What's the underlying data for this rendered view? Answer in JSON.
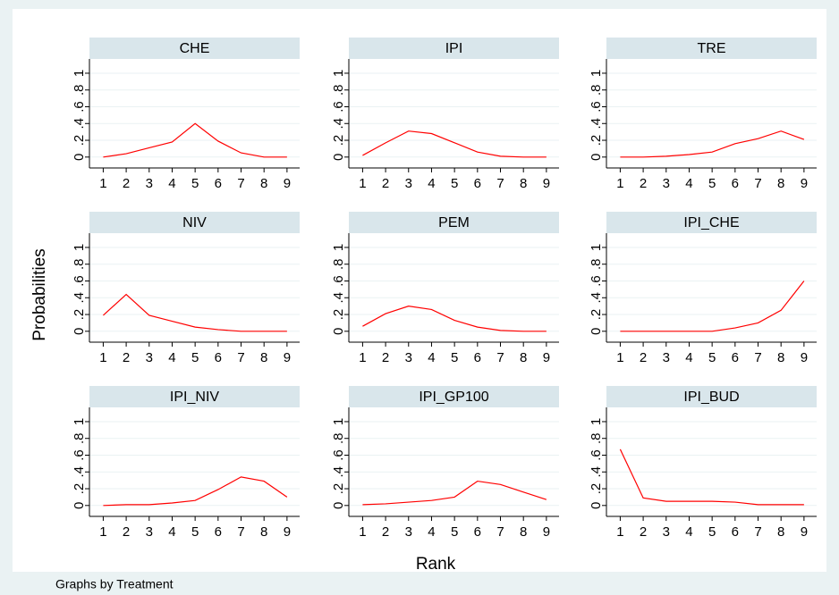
{
  "y_label": "Probabilities",
  "x_label": "Rank",
  "note": "Graphs by Treatment",
  "chart_data": [
    {
      "type": "line",
      "title": "CHE",
      "x": [
        1,
        2,
        3,
        4,
        5,
        6,
        7,
        8,
        9
      ],
      "values": [
        0,
        0.04,
        0.11,
        0.18,
        0.4,
        0.19,
        0.05,
        0,
        0
      ],
      "color": "#ff0000",
      "xlim": [
        0.4,
        9.55
      ],
      "ylim": [
        -0.13,
        1.17
      ],
      "xticks": [
        1,
        2,
        3,
        4,
        5,
        6,
        7,
        8,
        9
      ],
      "yticks": [
        0,
        {
          "value": 0.2,
          "label": ".2"
        },
        {
          "value": 0.4,
          "label": ".4"
        },
        {
          "value": 0.6,
          "label": ".6"
        },
        {
          "value": 0.8,
          "label": ".8"
        },
        1
      ],
      "grid": true
    },
    {
      "type": "line",
      "title": "IPI",
      "x": [
        1,
        2,
        3,
        4,
        5,
        6,
        7,
        8,
        9
      ],
      "values": [
        0.02,
        0.17,
        0.31,
        0.28,
        0.17,
        0.06,
        0.01,
        0,
        0
      ],
      "color": "#ff0000",
      "xlim": [
        0.4,
        9.55
      ],
      "ylim": [
        -0.13,
        1.17
      ],
      "xticks": [
        1,
        2,
        3,
        4,
        5,
        6,
        7,
        8,
        9
      ],
      "yticks": [
        0,
        {
          "value": 0.2,
          "label": ".2"
        },
        {
          "value": 0.4,
          "label": ".4"
        },
        {
          "value": 0.6,
          "label": ".6"
        },
        {
          "value": 0.8,
          "label": ".8"
        },
        1
      ],
      "grid": true
    },
    {
      "type": "line",
      "title": "TRE",
      "x": [
        1,
        2,
        3,
        4,
        5,
        6,
        7,
        8,
        9
      ],
      "values": [
        0,
        0,
        0.01,
        0.03,
        0.06,
        0.16,
        0.22,
        0.31,
        0.21
      ],
      "color": "#ff0000",
      "xlim": [
        0.4,
        9.55
      ],
      "ylim": [
        -0.13,
        1.17
      ],
      "xticks": [
        1,
        2,
        3,
        4,
        5,
        6,
        7,
        8,
        9
      ],
      "yticks": [
        0,
        {
          "value": 0.2,
          "label": ".2"
        },
        {
          "value": 0.4,
          "label": ".4"
        },
        {
          "value": 0.6,
          "label": ".6"
        },
        {
          "value": 0.8,
          "label": ".8"
        },
        1
      ],
      "grid": true
    },
    {
      "type": "line",
      "title": "NIV",
      "x": [
        1,
        2,
        3,
        4,
        5,
        6,
        7,
        8,
        9
      ],
      "values": [
        0.19,
        0.44,
        0.19,
        0.12,
        0.05,
        0.02,
        0,
        0,
        0
      ],
      "color": "#ff0000",
      "xlim": [
        0.4,
        9.55
      ],
      "ylim": [
        -0.13,
        1.17
      ],
      "xticks": [
        1,
        2,
        3,
        4,
        5,
        6,
        7,
        8,
        9
      ],
      "yticks": [
        0,
        {
          "value": 0.2,
          "label": ".2"
        },
        {
          "value": 0.4,
          "label": ".4"
        },
        {
          "value": 0.6,
          "label": ".6"
        },
        {
          "value": 0.8,
          "label": ".8"
        },
        1
      ],
      "grid": true
    },
    {
      "type": "line",
      "title": "PEM",
      "x": [
        1,
        2,
        3,
        4,
        5,
        6,
        7,
        8,
        9
      ],
      "values": [
        0.06,
        0.21,
        0.3,
        0.26,
        0.13,
        0.05,
        0.01,
        0,
        0
      ],
      "color": "#ff0000",
      "xlim": [
        0.4,
        9.55
      ],
      "ylim": [
        -0.13,
        1.17
      ],
      "xticks": [
        1,
        2,
        3,
        4,
        5,
        6,
        7,
        8,
        9
      ],
      "yticks": [
        0,
        {
          "value": 0.2,
          "label": ".2"
        },
        {
          "value": 0.4,
          "label": ".4"
        },
        {
          "value": 0.6,
          "label": ".6"
        },
        {
          "value": 0.8,
          "label": ".8"
        },
        1
      ],
      "grid": true
    },
    {
      "type": "line",
      "title": "IPI_CHE",
      "x": [
        1,
        2,
        3,
        4,
        5,
        6,
        7,
        8,
        9
      ],
      "values": [
        0,
        0,
        0,
        0,
        0,
        0.04,
        0.1,
        0.25,
        0.6
      ],
      "color": "#ff0000",
      "xlim": [
        0.4,
        9.55
      ],
      "ylim": [
        -0.13,
        1.17
      ],
      "xticks": [
        1,
        2,
        3,
        4,
        5,
        6,
        7,
        8,
        9
      ],
      "yticks": [
        0,
        {
          "value": 0.2,
          "label": ".2"
        },
        {
          "value": 0.4,
          "label": ".4"
        },
        {
          "value": 0.6,
          "label": ".6"
        },
        {
          "value": 0.8,
          "label": ".8"
        },
        1
      ],
      "grid": true
    },
    {
      "type": "line",
      "title": "IPI_NIV",
      "x": [
        1,
        2,
        3,
        4,
        5,
        6,
        7,
        8,
        9
      ],
      "values": [
        0,
        0.01,
        0.01,
        0.03,
        0.06,
        0.19,
        0.34,
        0.29,
        0.1
      ],
      "color": "#ff0000",
      "xlim": [
        0.4,
        9.55
      ],
      "ylim": [
        -0.13,
        1.17
      ],
      "xticks": [
        1,
        2,
        3,
        4,
        5,
        6,
        7,
        8,
        9
      ],
      "yticks": [
        0,
        {
          "value": 0.2,
          "label": ".2"
        },
        {
          "value": 0.4,
          "label": ".4"
        },
        {
          "value": 0.6,
          "label": ".6"
        },
        {
          "value": 0.8,
          "label": ".8"
        },
        1
      ],
      "grid": true
    },
    {
      "type": "line",
      "title": "IPI_GP100",
      "x": [
        1,
        2,
        3,
        4,
        5,
        6,
        7,
        8,
        9
      ],
      "values": [
        0.01,
        0.02,
        0.04,
        0.06,
        0.1,
        0.29,
        0.25,
        0.16,
        0.07
      ],
      "color": "#ff0000",
      "xlim": [
        0.4,
        9.55
      ],
      "ylim": [
        -0.13,
        1.17
      ],
      "xticks": [
        1,
        2,
        3,
        4,
        5,
        6,
        7,
        8,
        9
      ],
      "yticks": [
        0,
        {
          "value": 0.2,
          "label": ".2"
        },
        {
          "value": 0.4,
          "label": ".4"
        },
        {
          "value": 0.6,
          "label": ".6"
        },
        {
          "value": 0.8,
          "label": ".8"
        },
        1
      ],
      "grid": true
    },
    {
      "type": "line",
      "title": "IPI_BUD",
      "x": [
        1,
        2,
        3,
        4,
        5,
        6,
        7,
        8,
        9
      ],
      "values": [
        0.67,
        0.09,
        0.05,
        0.05,
        0.05,
        0.04,
        0.01,
        0.01,
        0.01
      ],
      "color": "#ff0000",
      "xlim": [
        0.4,
        9.55
      ],
      "ylim": [
        -0.13,
        1.17
      ],
      "xticks": [
        1,
        2,
        3,
        4,
        5,
        6,
        7,
        8,
        9
      ],
      "yticks": [
        0,
        {
          "value": 0.2,
          "label": ".2"
        },
        {
          "value": 0.4,
          "label": ".4"
        },
        {
          "value": 0.6,
          "label": ".6"
        },
        {
          "value": 0.8,
          "label": ".8"
        },
        1
      ],
      "grid": true
    }
  ]
}
